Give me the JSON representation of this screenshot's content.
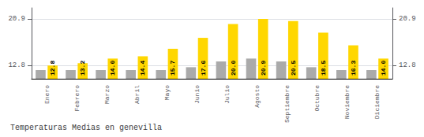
{
  "chart_data": {
    "type": "bar",
    "title": "Temperaturas Medias en genevilla",
    "categories": [
      "Enero",
      "Febrero",
      "Marzo",
      "Abril",
      "Mayo",
      "Junio",
      "Julio",
      "Agosto",
      "Septiembre",
      "Octubre",
      "Noviembre",
      "Diciembre"
    ],
    "series": [
      {
        "color": "#AAAAAA",
        "values": [
          12.0,
          12.0,
          12.0,
          12.0,
          12.0,
          12.5,
          13.5,
          14.0,
          13.5,
          12.5,
          12.0,
          12.0
        ]
      },
      {
        "color": "#FFD700",
        "values": [
          12.8,
          13.2,
          14.0,
          14.4,
          15.7,
          17.6,
          20.0,
          20.9,
          20.5,
          18.5,
          16.3,
          14.0
        ],
        "value_labels": [
          "12.8",
          "13.2",
          "14.0",
          "14.4",
          "15.7",
          "17.6",
          "20.0",
          "20.9",
          "20.5",
          "18.5",
          "16.3",
          "14.0"
        ],
        "data_labels": true
      }
    ],
    "ylim": [
      10.5,
      22.8
    ],
    "yticks": [
      12.8,
      20.9
    ],
    "grid": true
  }
}
